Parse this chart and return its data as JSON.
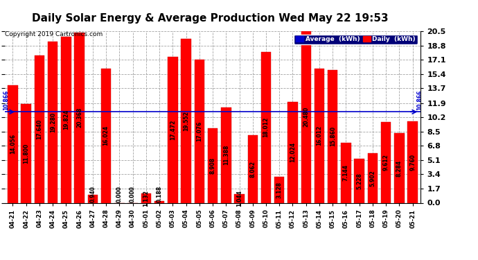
{
  "title": "Daily Solar Energy & Average Production Wed May 22 19:53",
  "copyright": "Copyright 2019 Cartronics.com",
  "average_value": 10.866,
  "categories": [
    "04-21",
    "04-22",
    "04-23",
    "04-24",
    "04-25",
    "04-26",
    "04-27",
    "04-28",
    "04-29",
    "04-30",
    "05-01",
    "05-02",
    "05-03",
    "05-04",
    "05-05",
    "05-06",
    "05-07",
    "05-08",
    "05-09",
    "05-10",
    "05-11",
    "05-12",
    "05-13",
    "05-14",
    "05-15",
    "05-16",
    "05-17",
    "05-18",
    "05-19",
    "05-20",
    "05-21"
  ],
  "values": [
    14.056,
    11.8,
    17.64,
    19.28,
    19.824,
    20.368,
    0.94,
    16.024,
    0.0,
    0.0,
    1.132,
    0.188,
    17.472,
    19.552,
    17.076,
    8.908,
    11.388,
    1.044,
    8.062,
    18.012,
    3.128,
    12.024,
    20.48,
    16.012,
    15.86,
    7.144,
    5.228,
    5.902,
    9.612,
    8.284,
    9.76
  ],
  "bar_color": "#ff0000",
  "bar_edge_color": "#cc0000",
  "avg_line_color": "#0000cc",
  "background_color": "#ffffff",
  "plot_bg_color": "#ffffff",
  "grid_color": "#999999",
  "title_fontsize": 11,
  "tick_label_fontsize": 6,
  "bar_label_fontsize": 5.5,
  "yticks": [
    0.0,
    1.7,
    3.4,
    5.1,
    6.8,
    8.5,
    10.2,
    11.9,
    13.7,
    15.4,
    17.1,
    18.8,
    20.5
  ],
  "legend_avg_color": "#0000cc",
  "legend_daily_color": "#ff0000",
  "legend_text_color": "#ffffff",
  "ymax": 20.5
}
